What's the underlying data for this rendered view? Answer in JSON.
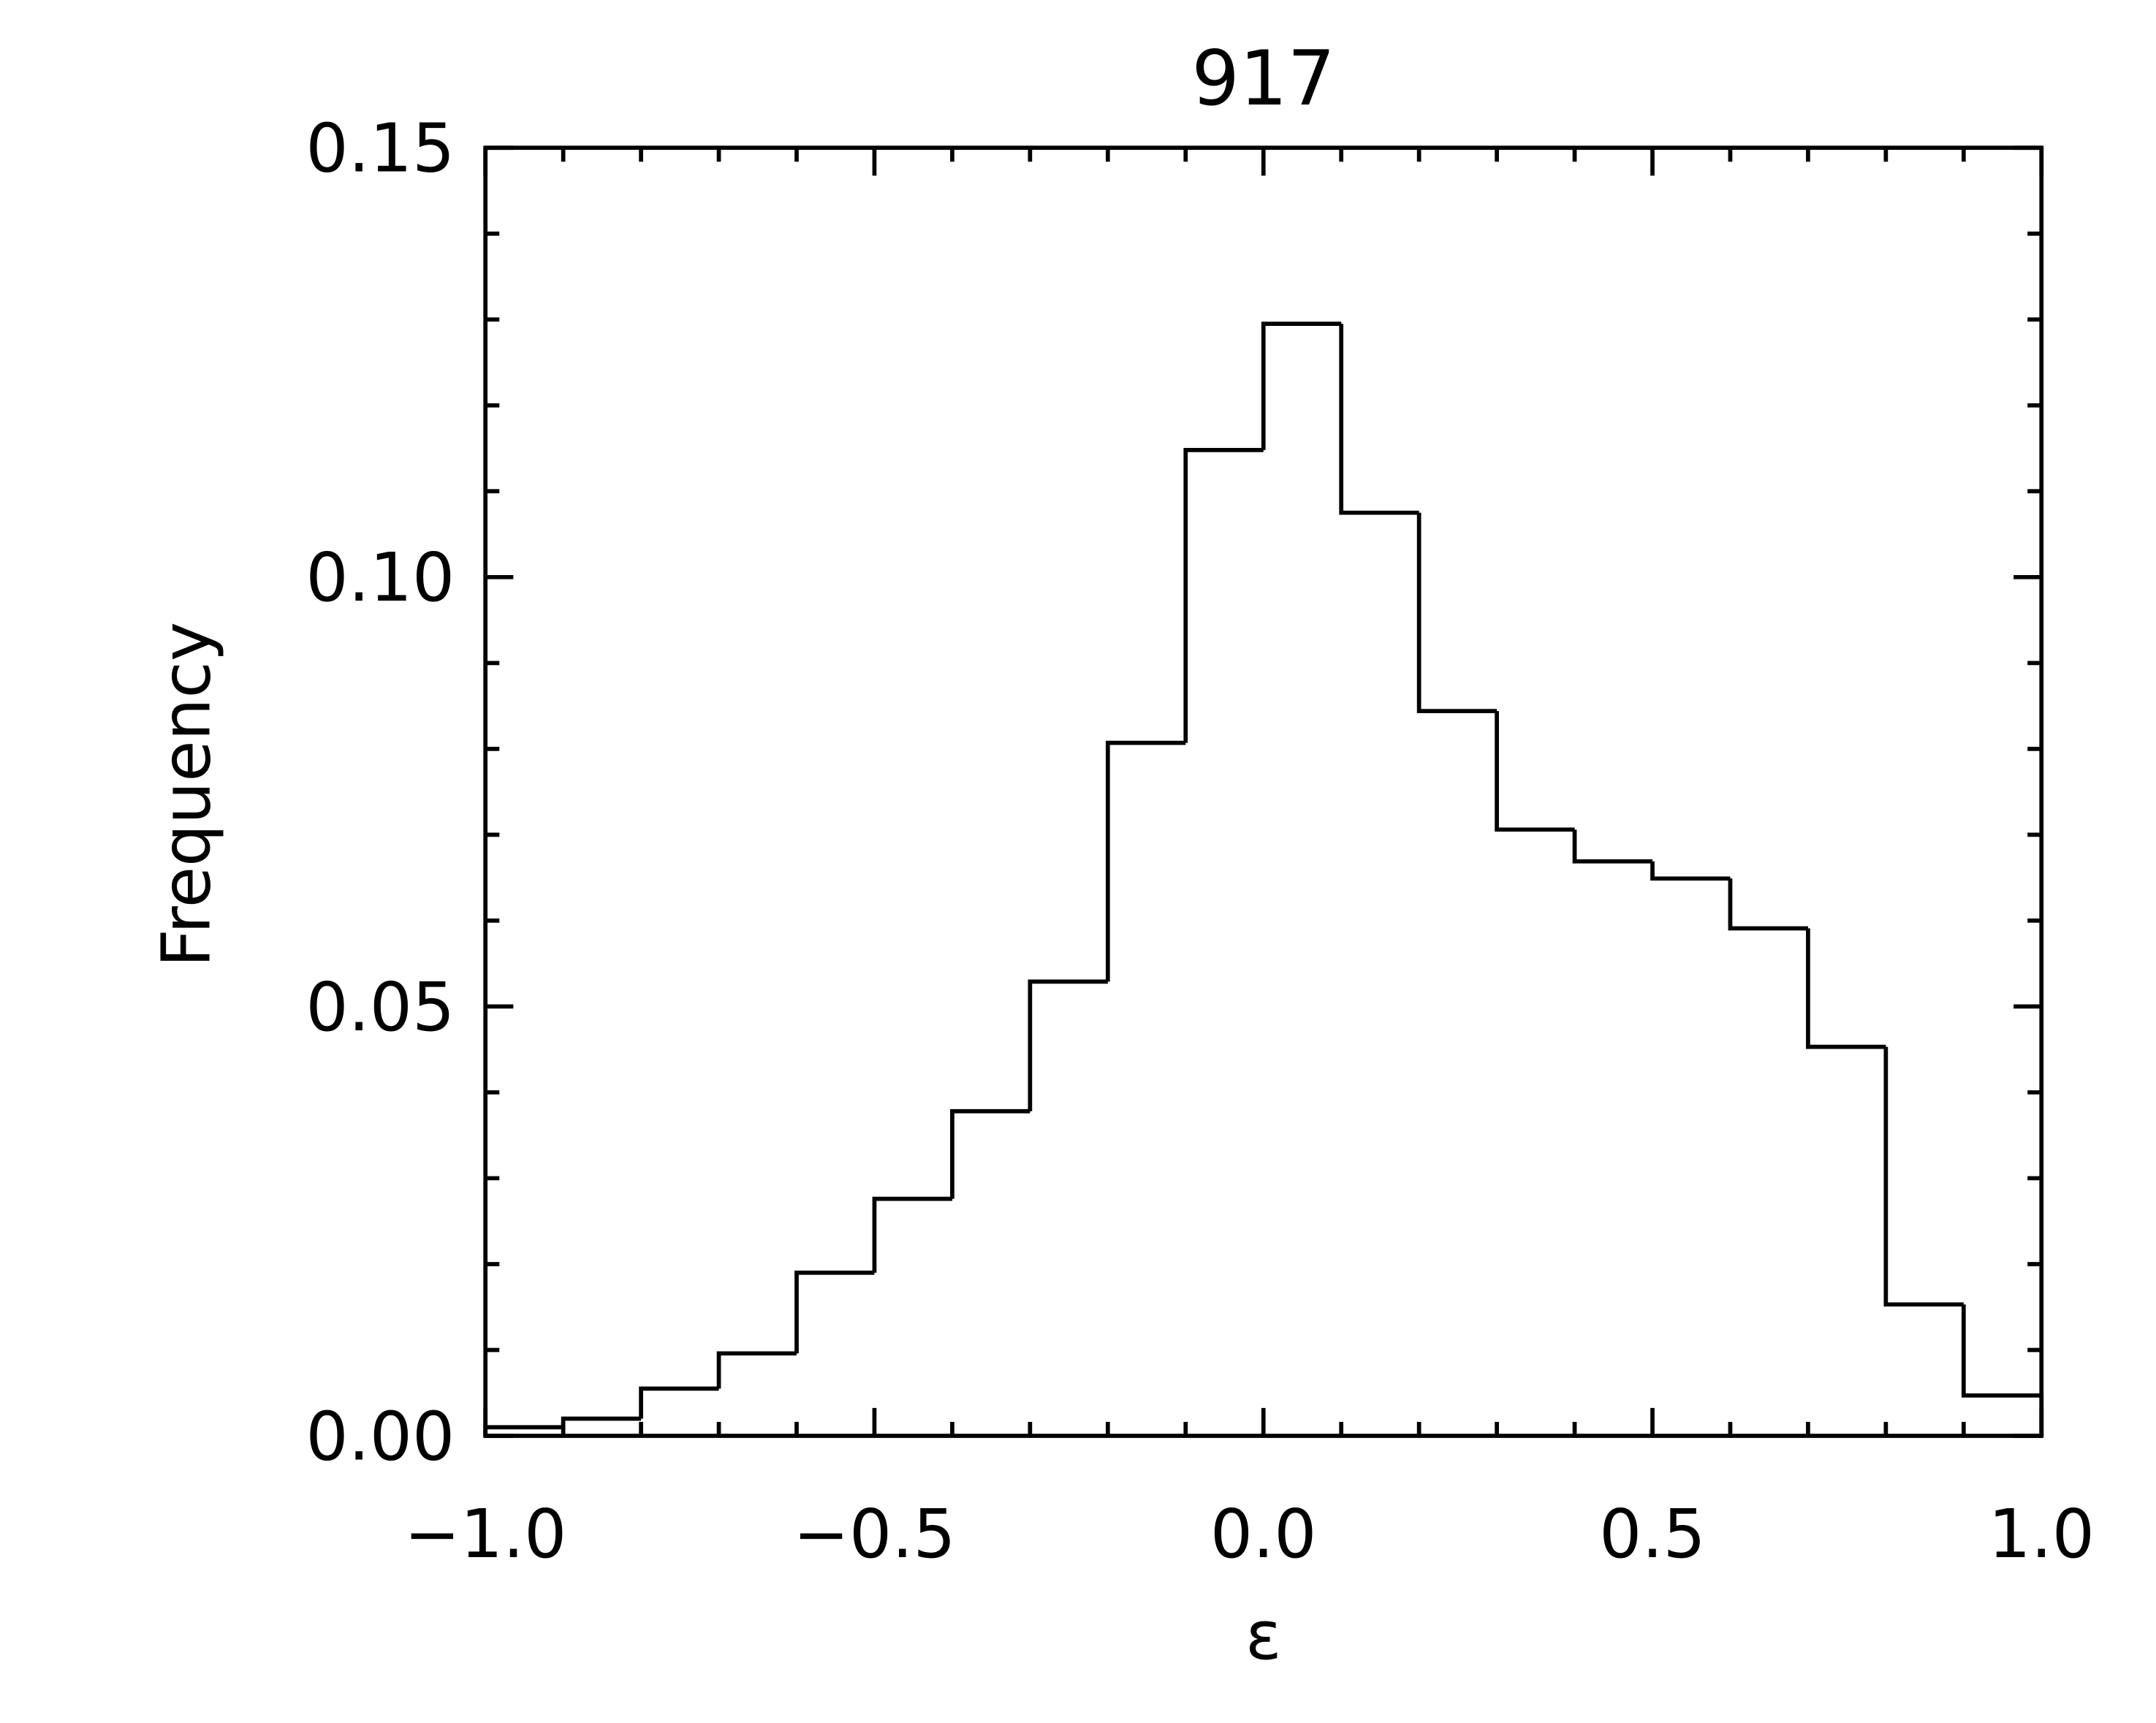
{
  "chart_data": {
    "type": "histogram",
    "title": "917",
    "x_label": "ε",
    "y_label": "Frequency",
    "bins": [
      -1.0,
      -0.9,
      -0.8,
      -0.7,
      -0.6,
      -0.5,
      -0.4,
      -0.3,
      -0.2,
      -0.1,
      0.0,
      0.1,
      0.2,
      0.3,
      0.4,
      0.5,
      0.6,
      0.7,
      0.8,
      0.9,
      1.0
    ],
    "values": [
      0.001,
      0.002,
      0.0055,
      0.0096,
      0.019,
      0.0276,
      0.0378,
      0.0529,
      0.0807,
      0.1148,
      0.1295,
      0.1075,
      0.0844,
      0.0706,
      0.0669,
      0.0649,
      0.0591,
      0.0453,
      0.0153,
      0.0047
    ],
    "color": "#000000",
    "xlim": [
      -1.0,
      1.0
    ],
    "xticks": [
      {
        "value": -1.0,
        "label": "−1.0"
      },
      {
        "value": -0.5,
        "label": "−0.5"
      },
      {
        "value": 0.0,
        "label": "0.0"
      },
      {
        "value": 0.5,
        "label": "0.5"
      },
      {
        "value": 1.0,
        "label": "1.0"
      }
    ],
    "ylim": [
      0,
      0.15
    ],
    "yticks": [
      {
        "value": 0,
        "label": "0.00"
      },
      0.05,
      {
        "value": 0.1,
        "label": "0.10"
      },
      0.15
    ],
    "grid": false
  }
}
